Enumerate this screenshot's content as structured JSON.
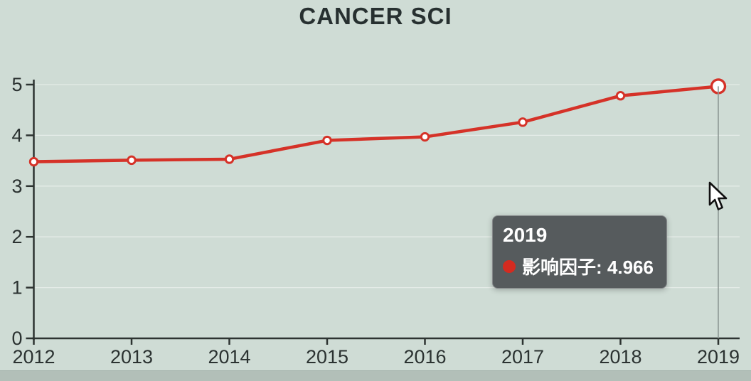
{
  "title": "CANCER SCI",
  "colors": {
    "background": "#cfdcd5",
    "line": "#d53228",
    "marker_fill": "#ffffff",
    "axis": "#2d3331",
    "tick_text": "#2b3231",
    "gridline": "rgba(255,255,255,0.45)",
    "guideline": "#8e9995",
    "tooltip_bg": "#565b5d",
    "tooltip_text": "#ffffff",
    "legend_dot": "#d42b20"
  },
  "chart_data": {
    "type": "line",
    "title": "CANCER SCI",
    "categories": [
      "2012",
      "2013",
      "2014",
      "2015",
      "2016",
      "2017",
      "2018",
      "2019"
    ],
    "series": [
      {
        "name": "影响因子",
        "values": [
          3.48,
          3.51,
          3.53,
          3.9,
          3.97,
          4.26,
          4.78,
          4.966
        ]
      }
    ],
    "xlabel": "",
    "ylabel": "",
    "ylim": [
      0,
      5
    ],
    "y_ticks": [
      0,
      1,
      2,
      3,
      4,
      5
    ],
    "grid": true,
    "legend_position": "none",
    "active_point": {
      "category": "2019",
      "value": 4.966
    }
  },
  "tooltip": {
    "year": "2019",
    "series_label": "影响因子",
    "value": "4.966",
    "text": "影响因子: 4.966"
  }
}
